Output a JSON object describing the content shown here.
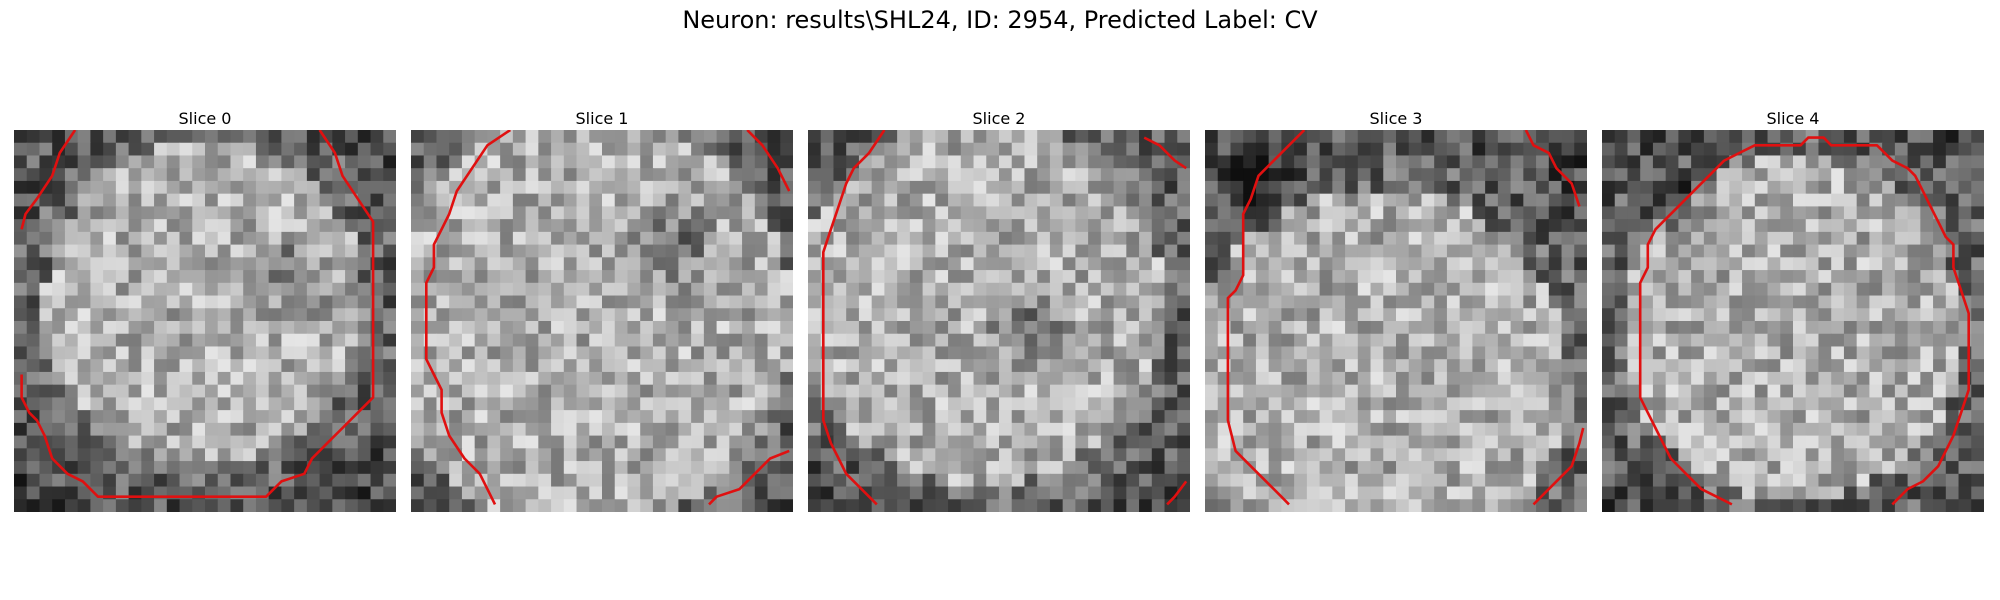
{
  "figure": {
    "title": "Neuron: results\\SHL24, ID: 2954, Predicted Label: CV",
    "contour_color": "#e01010",
    "grid_size": 30,
    "cmap": "gray"
  },
  "panels": [
    {
      "title": "Slice 0",
      "bright_center": [
        0.5,
        0.45
      ],
      "bright_radius": 0.42,
      "dark_spot": [
        0.72,
        0.38
      ],
      "seed": 11,
      "contours": [
        [
          [
            0.16,
            0.0
          ],
          [
            0.12,
            0.06
          ],
          [
            0.1,
            0.12
          ],
          [
            0.06,
            0.18
          ],
          [
            0.03,
            0.22
          ],
          [
            0.02,
            0.26
          ]
        ],
        [
          [
            0.8,
            0.0
          ],
          [
            0.84,
            0.06
          ],
          [
            0.86,
            0.12
          ],
          [
            0.9,
            0.18
          ],
          [
            0.94,
            0.24
          ],
          [
            0.94,
            0.36
          ],
          [
            0.94,
            0.48
          ],
          [
            0.94,
            0.6
          ],
          [
            0.94,
            0.7
          ],
          [
            0.9,
            0.74
          ],
          [
            0.86,
            0.78
          ],
          [
            0.82,
            0.82
          ],
          [
            0.78,
            0.86
          ],
          [
            0.76,
            0.9
          ],
          [
            0.7,
            0.92
          ],
          [
            0.66,
            0.96
          ],
          [
            0.56,
            0.96
          ],
          [
            0.44,
            0.96
          ],
          [
            0.32,
            0.96
          ],
          [
            0.22,
            0.96
          ],
          [
            0.18,
            0.92
          ],
          [
            0.14,
            0.9
          ],
          [
            0.1,
            0.86
          ],
          [
            0.08,
            0.8
          ],
          [
            0.06,
            0.76
          ],
          [
            0.04,
            0.74
          ],
          [
            0.02,
            0.7
          ],
          [
            0.02,
            0.64
          ]
        ]
      ]
    },
    {
      "title": "Slice 1",
      "bright_center": [
        0.45,
        0.5
      ],
      "bright_radius": 0.55,
      "dark_spot": [
        0.7,
        0.3
      ],
      "seed": 23,
      "contours": [
        [
          [
            0.26,
            0.0
          ],
          [
            0.2,
            0.04
          ],
          [
            0.16,
            0.1
          ],
          [
            0.12,
            0.16
          ],
          [
            0.1,
            0.22
          ],
          [
            0.08,
            0.26
          ],
          [
            0.06,
            0.3
          ],
          [
            0.06,
            0.36
          ],
          [
            0.04,
            0.4
          ],
          [
            0.04,
            0.5
          ],
          [
            0.04,
            0.6
          ],
          [
            0.06,
            0.64
          ],
          [
            0.08,
            0.68
          ],
          [
            0.08,
            0.74
          ],
          [
            0.1,
            0.8
          ],
          [
            0.14,
            0.86
          ],
          [
            0.18,
            0.9
          ],
          [
            0.2,
            0.94
          ],
          [
            0.22,
            0.98
          ]
        ],
        [
          [
            0.88,
            0.0
          ],
          [
            0.92,
            0.04
          ],
          [
            0.96,
            0.1
          ],
          [
            0.99,
            0.16
          ]
        ],
        [
          [
            0.99,
            0.84
          ],
          [
            0.94,
            0.86
          ],
          [
            0.9,
            0.9
          ],
          [
            0.86,
            0.94
          ],
          [
            0.8,
            0.96
          ],
          [
            0.78,
            0.98
          ]
        ]
      ]
    },
    {
      "title": "Slice 2",
      "bright_center": [
        0.45,
        0.45
      ],
      "bright_radius": 0.48,
      "dark_spot": [
        0.58,
        0.5
      ],
      "seed": 37,
      "contours": [
        [
          [
            0.2,
            0.0
          ],
          [
            0.16,
            0.06
          ],
          [
            0.12,
            0.1
          ],
          [
            0.1,
            0.14
          ],
          [
            0.08,
            0.2
          ],
          [
            0.06,
            0.26
          ],
          [
            0.04,
            0.32
          ],
          [
            0.04,
            0.44
          ],
          [
            0.04,
            0.56
          ],
          [
            0.04,
            0.68
          ],
          [
            0.04,
            0.76
          ],
          [
            0.06,
            0.82
          ],
          [
            0.08,
            0.86
          ],
          [
            0.1,
            0.9
          ],
          [
            0.14,
            0.94
          ],
          [
            0.18,
            0.98
          ]
        ],
        [
          [
            0.88,
            0.02
          ],
          [
            0.92,
            0.04
          ],
          [
            0.96,
            0.08
          ],
          [
            0.99,
            0.1
          ]
        ],
        [
          [
            0.99,
            0.92
          ],
          [
            0.96,
            0.96
          ],
          [
            0.94,
            0.98
          ]
        ]
      ]
    },
    {
      "title": "Slice 3",
      "bright_center": [
        0.45,
        0.65
      ],
      "bright_radius": 0.5,
      "dark_spot": [
        0.15,
        0.15
      ],
      "seed": 51,
      "contours": [
        [
          [
            0.26,
            0.0
          ],
          [
            0.2,
            0.06
          ],
          [
            0.14,
            0.12
          ],
          [
            0.12,
            0.18
          ],
          [
            0.1,
            0.22
          ],
          [
            0.1,
            0.32
          ],
          [
            0.1,
            0.38
          ],
          [
            0.08,
            0.42
          ],
          [
            0.06,
            0.44
          ],
          [
            0.06,
            0.54
          ],
          [
            0.06,
            0.64
          ],
          [
            0.06,
            0.76
          ],
          [
            0.08,
            0.84
          ],
          [
            0.12,
            0.88
          ],
          [
            0.16,
            0.92
          ],
          [
            0.2,
            0.96
          ],
          [
            0.22,
            0.98
          ]
        ],
        [
          [
            0.84,
            0.0
          ],
          [
            0.86,
            0.04
          ],
          [
            0.9,
            0.06
          ],
          [
            0.92,
            0.1
          ],
          [
            0.96,
            0.14
          ],
          [
            0.98,
            0.2
          ]
        ],
        [
          [
            0.99,
            0.78
          ],
          [
            0.98,
            0.82
          ],
          [
            0.96,
            0.88
          ],
          [
            0.92,
            0.92
          ],
          [
            0.88,
            0.96
          ],
          [
            0.86,
            0.98
          ]
        ]
      ]
    },
    {
      "title": "Slice 4",
      "bright_center": [
        0.5,
        0.52
      ],
      "bright_radius": 0.45,
      "dark_spot": [
        0.2,
        0.2
      ],
      "seed": 67,
      "contours": [
        [
          [
            0.34,
            0.98
          ],
          [
            0.3,
            0.96
          ],
          [
            0.26,
            0.94
          ],
          [
            0.22,
            0.9
          ],
          [
            0.18,
            0.86
          ],
          [
            0.16,
            0.82
          ],
          [
            0.14,
            0.78
          ],
          [
            0.12,
            0.74
          ],
          [
            0.1,
            0.7
          ],
          [
            0.1,
            0.6
          ],
          [
            0.1,
            0.5
          ],
          [
            0.1,
            0.4
          ],
          [
            0.12,
            0.36
          ],
          [
            0.12,
            0.3
          ],
          [
            0.14,
            0.26
          ],
          [
            0.16,
            0.24
          ],
          [
            0.2,
            0.2
          ],
          [
            0.24,
            0.16
          ],
          [
            0.28,
            0.12
          ],
          [
            0.32,
            0.08
          ],
          [
            0.36,
            0.06
          ],
          [
            0.4,
            0.04
          ],
          [
            0.46,
            0.04
          ],
          [
            0.52,
            0.04
          ],
          [
            0.54,
            0.02
          ],
          [
            0.58,
            0.02
          ],
          [
            0.6,
            0.04
          ],
          [
            0.66,
            0.04
          ],
          [
            0.72,
            0.04
          ],
          [
            0.74,
            0.06
          ],
          [
            0.76,
            0.08
          ],
          [
            0.8,
            0.1
          ],
          [
            0.82,
            0.12
          ],
          [
            0.84,
            0.16
          ],
          [
            0.86,
            0.2
          ],
          [
            0.88,
            0.24
          ],
          [
            0.9,
            0.28
          ],
          [
            0.92,
            0.3
          ],
          [
            0.92,
            0.36
          ],
          [
            0.94,
            0.42
          ],
          [
            0.96,
            0.48
          ],
          [
            0.96,
            0.58
          ],
          [
            0.96,
            0.68
          ],
          [
            0.94,
            0.74
          ],
          [
            0.92,
            0.8
          ],
          [
            0.9,
            0.84
          ],
          [
            0.88,
            0.88
          ],
          [
            0.84,
            0.92
          ],
          [
            0.8,
            0.94
          ],
          [
            0.78,
            0.96
          ],
          [
            0.76,
            0.98
          ]
        ]
      ]
    }
  ]
}
